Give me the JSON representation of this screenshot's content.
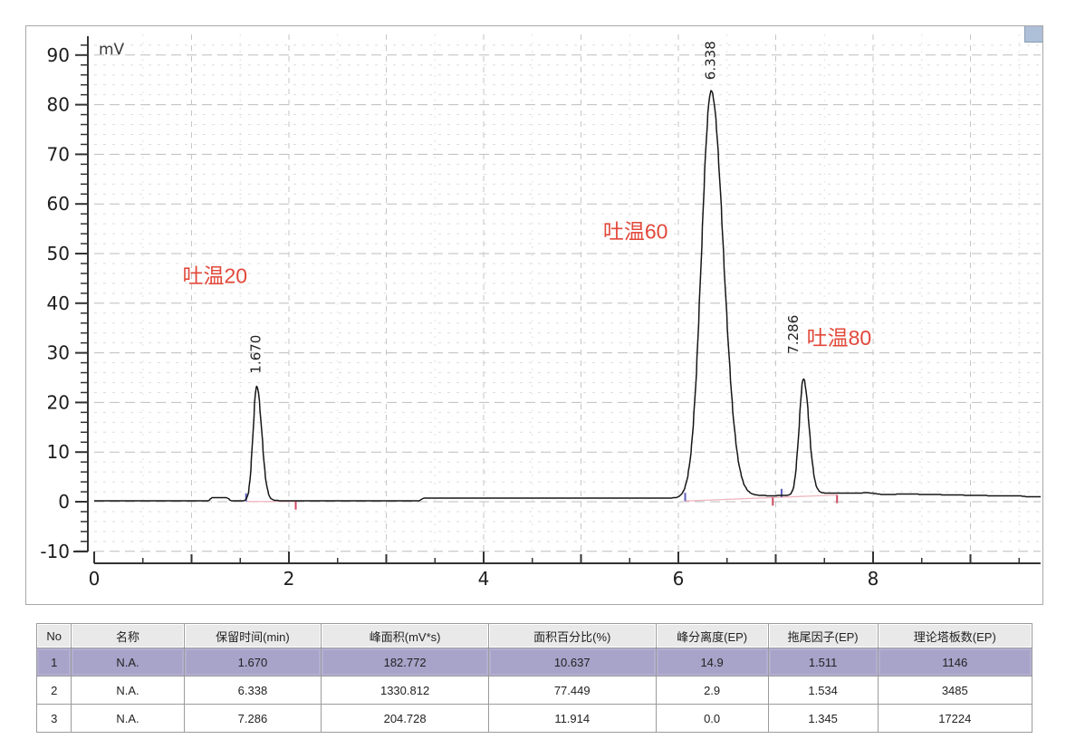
{
  "chart_data": {
    "type": "line",
    "title": "",
    "xlabel": "",
    "ylabel": "mV",
    "y_unit_label": "mV",
    "xlim": [
      0,
      9.72
    ],
    "ylim": [
      -12,
      94
    ],
    "x_tick_labels": [
      "0",
      "2",
      "4",
      "6",
      "8"
    ],
    "x_major_ticks": [
      0,
      2,
      4,
      6,
      8
    ],
    "x_minor_step": 0.5,
    "y_major_ticks": [
      -10,
      0,
      10,
      20,
      30,
      40,
      50,
      60,
      70,
      80,
      90
    ],
    "y_minor_step": 2,
    "grid": "dashed",
    "trace_color": "#161616",
    "peaks": [
      {
        "rt": 1.67,
        "rt_label": "1.670",
        "height_mV": 23.2,
        "sl": 0.038,
        "sr": 0.05,
        "k": 0.04,
        "tau": 0.09,
        "ldx": 4,
        "label_y": 25.8
      },
      {
        "rt": 6.338,
        "rt_label": "6.338",
        "height_mV": 82.0,
        "sl": 0.1,
        "sr": 0.125,
        "k": 0.03,
        "tau": 0.2,
        "ldx": 4,
        "label_y": 85.0
      },
      {
        "rt": 7.286,
        "rt_label": "7.286",
        "height_mV": 23.4,
        "sl": 0.045,
        "sr": 0.055,
        "k": 0.05,
        "tau": 0.13,
        "ldx": -6,
        "label_y": 29.8
      }
    ],
    "annotations": [
      {
        "text": "吐温20",
        "x": 1.24,
        "y": 45.5,
        "color": "#e2483a"
      },
      {
        "text": "吐温60",
        "x": 5.56,
        "y": 54.5,
        "color": "#e2483a"
      },
      {
        "text": "吐温80",
        "x": 7.65,
        "y": 33.0,
        "color": "#e2483a"
      }
    ],
    "baseline_points": [
      [
        0,
        0.15
      ],
      [
        1.17,
        0.15
      ],
      [
        1.21,
        0.85
      ],
      [
        1.36,
        0.85
      ],
      [
        1.41,
        0.15
      ],
      [
        3.33,
        0.15
      ],
      [
        3.38,
        0.7
      ],
      [
        6.05,
        0.75
      ],
      [
        6.95,
        1.1
      ],
      [
        7.6,
        1.6
      ],
      [
        7.95,
        1.8
      ],
      [
        8.1,
        1.45
      ],
      [
        8.35,
        1.55
      ],
      [
        9.25,
        1.2
      ],
      [
        9.5,
        1.2
      ],
      [
        9.58,
        1.0
      ],
      [
        9.72,
        1.0
      ]
    ],
    "integration": {
      "baseline_segments": [
        {
          "x1": 1.56,
          "y1": 0.05,
          "x2": 2.07,
          "y2": 0.05
        },
        {
          "x1": 6.07,
          "y1": 0.15,
          "x2": 7.63,
          "y2": 1.35
        }
      ],
      "start_marks": [
        {
          "t": 1.56,
          "b": 0.05
        },
        {
          "t": 6.07,
          "b": 0.15
        },
        {
          "t": 7.06,
          "b": 0.95
        }
      ],
      "end_marks": [
        {
          "t": 2.07,
          "b": 0.05
        },
        {
          "t": 6.97,
          "b": 0.85
        },
        {
          "t": 7.63,
          "b": 1.35
        }
      ],
      "start_color": "#5f5fc0",
      "end_color": "#cf4a63",
      "baseline_color": "#efb6bd"
    }
  },
  "table": {
    "headers": [
      "No",
      "名称",
      "保留时间(min)",
      "峰面积(mV*s)",
      "面积百分比(%)",
      "峰分离度(EP)",
      "拖尾因子(EP)",
      "理论塔板数(EP)"
    ],
    "col_widths_pct": [
      3.5,
      11.3,
      13.8,
      16.8,
      16.8,
      11.3,
      11.0,
      15.5
    ],
    "rows": [
      [
        "1",
        "N.A.",
        "1.670",
        "182.772",
        "10.637",
        "14.9",
        "1.511",
        "1146"
      ],
      [
        "2",
        "N.A.",
        "6.338",
        "1330.812",
        "77.449",
        "2.9",
        "1.534",
        "3485"
      ],
      [
        "3",
        "N.A.",
        "7.286",
        "204.728",
        "11.914",
        "0.0",
        "1.345",
        "17224"
      ]
    ],
    "highlight_row_index": 0,
    "highlight_color": "#a7a3c9"
  }
}
